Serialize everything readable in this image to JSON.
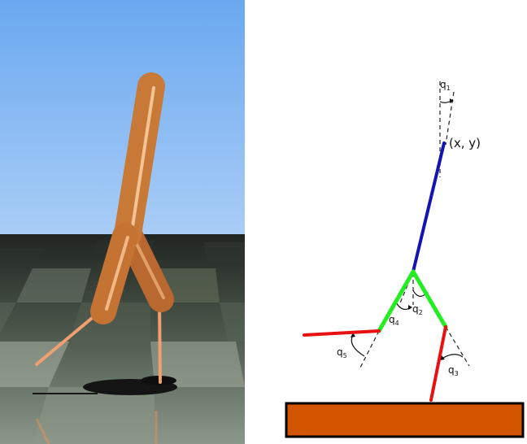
{
  "figure": {
    "left_panel": "3D rendering of a two-legged walker robot standing on a checkered floor",
    "diagram": {
      "body_point_label": "(x, y)",
      "angles": [
        {
          "name": "q",
          "sub": "1"
        },
        {
          "name": "q",
          "sub": "2"
        },
        {
          "name": "q",
          "sub": "3"
        },
        {
          "name": "q",
          "sub": "4"
        },
        {
          "name": "q",
          "sub": "5"
        }
      ],
      "colors": {
        "torso": "#1414b4",
        "thigh": "#22ee22",
        "shin": "#e81010",
        "ground": "#d45500",
        "robot": "#d9843f",
        "sky": "#7fb4f0"
      }
    }
  }
}
